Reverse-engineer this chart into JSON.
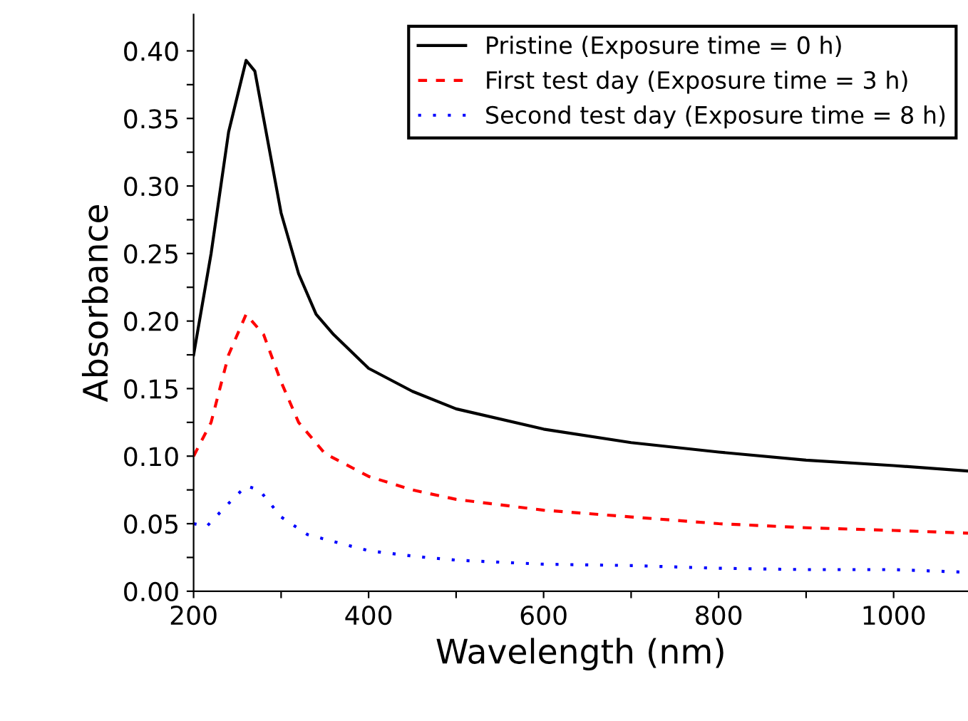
{
  "chart_data": {
    "type": "line",
    "xlabel": "Wavelength (nm)",
    "ylabel": "Absorbance",
    "xlim": [
      200,
      1085
    ],
    "ylim": [
      0,
      0.427
    ],
    "xticks": [
      200,
      {
        "value": 300,
        "label": null
      },
      400,
      {
        "value": 500,
        "label": null
      },
      600,
      {
        "value": 700,
        "label": null
      },
      800,
      {
        "value": 900,
        "label": null
      },
      1000
    ],
    "yticks": [
      {
        "value": 0,
        "label": "0.00"
      },
      {
        "value": 0.025,
        "label": null
      },
      {
        "value": 0.05,
        "label": "0.05"
      },
      {
        "value": 0.075,
        "label": null
      },
      {
        "value": 0.1,
        "label": "0.10"
      },
      {
        "value": 0.125,
        "label": null
      },
      {
        "value": 0.15,
        "label": "0.15"
      },
      {
        "value": 0.175,
        "label": null
      },
      {
        "value": 0.2,
        "label": "0.20"
      },
      {
        "value": 0.225,
        "label": null
      },
      {
        "value": 0.25,
        "label": "0.25"
      },
      {
        "value": 0.275,
        "label": null
      },
      {
        "value": 0.3,
        "label": "0.30"
      },
      {
        "value": 0.325,
        "label": null
      },
      {
        "value": 0.35,
        "label": "0.35"
      },
      {
        "value": 0.375,
        "label": null
      },
      {
        "value": 0.4,
        "label": "0.40"
      }
    ],
    "grid": false,
    "legend": "top right",
    "marker": "none",
    "series": [
      {
        "name": "Pristine (Exposure time = 0 h)",
        "color": "#000000",
        "line_style": "solid",
        "x": [
          200,
          220,
          240,
          260,
          270,
          280,
          300,
          320,
          340,
          360,
          400,
          450,
          500,
          600,
          700,
          800,
          900,
          1000,
          1085
        ],
        "values": [
          0.175,
          0.25,
          0.34,
          0.393,
          0.385,
          0.35,
          0.28,
          0.235,
          0.205,
          0.19,
          0.165,
          0.148,
          0.135,
          0.12,
          0.11,
          0.103,
          0.097,
          0.093,
          0.089
        ]
      },
      {
        "name": "First test day (Exposure time = 3 h)",
        "color": "#ff0000",
        "line_style": "dashed",
        "x": [
          200,
          220,
          240,
          260,
          280,
          300,
          320,
          350,
          400,
          450,
          500,
          600,
          700,
          800,
          900,
          1000,
          1085
        ],
        "values": [
          0.1,
          0.125,
          0.175,
          0.205,
          0.19,
          0.155,
          0.125,
          0.102,
          0.085,
          0.075,
          0.068,
          0.06,
          0.055,
          0.05,
          0.047,
          0.045,
          0.043
        ]
      },
      {
        "name": "Second test day (Exposure time = 8 h)",
        "color": "#0000ff",
        "line_style": "dotted",
        "x": [
          200,
          215,
          240,
          260,
          275,
          300,
          330,
          370,
          400,
          450,
          500,
          600,
          700,
          800,
          900,
          1000,
          1085
        ],
        "values": [
          0.05,
          0.048,
          0.065,
          0.078,
          0.075,
          0.055,
          0.042,
          0.035,
          0.03,
          0.026,
          0.023,
          0.02,
          0.019,
          0.017,
          0.016,
          0.016,
          0.014
        ]
      }
    ]
  }
}
